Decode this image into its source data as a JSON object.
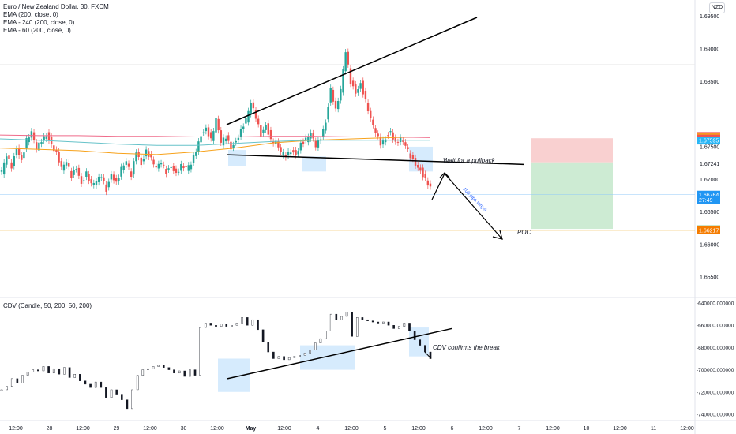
{
  "symbol_legend": {
    "symbol": "Euro / New Zealand Dollar, 30, FXCM",
    "indicators": [
      "EMA (200, close, 0)",
      "EMA - 240 (200, close, 0)",
      "EMA - 60 (200, close, 0)"
    ]
  },
  "cdv_legend": "CDV (Candle, 50, 200, 50, 200)",
  "currency_button": "NZD",
  "colors": {
    "up": "#26a69a",
    "down": "#ef5350",
    "ema200": "#f7a21b",
    "ema240": "#ef6b8a",
    "ema60": "#66c2c9",
    "poc": "#f0b43c",
    "zone": "#bbdefb",
    "stop": "#f9d0d0",
    "target": "#cdebd3",
    "text_label": "#2962ff"
  },
  "annotations": {
    "pullback": "Wait for a pullback",
    "poc": "POC",
    "target_move": "100 pips target",
    "cdv_break": "CDV confirms the break"
  },
  "chart_data": [
    {
      "type": "candlestick",
      "title": "Euro / New Zealand Dollar, 30, FXCM",
      "ylim": [
        1.652,
        1.6975
      ],
      "y_ticks": [
        "1.69500",
        "1.69000",
        "1.68500",
        "1.67500",
        "1.67241",
        "1.67000",
        "1.66500",
        "1.66000",
        "1.65500"
      ],
      "x_ticks": [
        "12:00",
        "28",
        "12:00",
        "29",
        "12:00",
        "30",
        "12:00",
        "May",
        "12:00",
        "4",
        "12:00",
        "5",
        "12:00",
        "6",
        "12:00",
        "7",
        "12:00",
        "10",
        "12:00",
        "11",
        "12:00"
      ],
      "price_path": [
        1.671,
        1.6735,
        1.672,
        1.675,
        1.673,
        1.676,
        1.677,
        1.6745,
        1.676,
        1.677,
        1.6755,
        1.674,
        1.6715,
        1.6725,
        1.6705,
        1.672,
        1.6695,
        1.671,
        1.669,
        1.6695,
        1.6705,
        1.6685,
        1.671,
        1.6695,
        1.6715,
        1.6725,
        1.6705,
        1.6745,
        1.6725,
        1.6745,
        1.673,
        1.6715,
        1.6725,
        1.6712,
        1.6722,
        1.671,
        1.672,
        1.6715,
        1.6722,
        1.6745,
        1.677,
        1.678,
        1.676,
        1.679,
        1.6755,
        1.6765,
        1.675,
        1.676,
        1.6775,
        1.679,
        1.6815,
        1.6795,
        1.677,
        1.6785,
        1.676,
        1.6755,
        1.674,
        1.6735,
        1.6745,
        1.674,
        1.6755,
        1.676,
        1.6768,
        1.675,
        1.6765,
        1.679,
        1.684,
        1.6805,
        1.6835,
        1.6895,
        1.685,
        1.6835,
        1.6848,
        1.682,
        1.679,
        1.677,
        1.6755,
        1.6765,
        1.6775,
        1.6755,
        1.676,
        1.675,
        1.6735,
        1.6725,
        1.6715,
        1.67,
        1.6685
      ],
      "series": [
        {
          "name": "EMA (200, close, 0)",
          "values": [
            1.6748,
            1.6746,
            1.6744,
            1.674,
            1.6738,
            1.6742,
            1.6748,
            1.6756,
            1.676,
            1.6762,
            1.6764,
            1.6765
          ]
        },
        {
          "name": "EMA - 240 (200, close, 0)",
          "values": [
            1.6768,
            1.6767,
            1.6767,
            1.6766,
            1.6766,
            1.6765,
            1.6765,
            1.6766,
            1.6766,
            1.6765,
            1.6765,
            1.6764
          ]
        },
        {
          "name": "EMA - 60 (200, close, 0)",
          "values": [
            1.6762,
            1.676,
            1.6757,
            1.6754,
            1.6752,
            1.6752,
            1.6755,
            1.6758,
            1.676,
            1.676,
            1.676,
            1.676
          ]
        }
      ],
      "price_labels": [
        {
          "text": "1.67664",
          "value": 1.67664,
          "color": "#ef5350"
        },
        {
          "text": "1.67643",
          "value": 1.67643,
          "color": "#f7a21b"
        },
        {
          "text": "1.67624",
          "value": 1.67624,
          "color": "#ef5350"
        },
        {
          "text": "1.67595",
          "value": 1.67595,
          "color": "#29b6f6"
        },
        {
          "text": "1.66764",
          "value": 1.66764,
          "color": "#2196f3"
        },
        {
          "text": "27:49",
          "value": 1.6668,
          "color": "#2196f3"
        },
        {
          "text": "1.66232",
          "value": 1.66232,
          "color": "#43a047"
        },
        {
          "text": "1.66217",
          "value": 1.66217,
          "color": "#f57c00"
        }
      ],
      "levels": {
        "neckline": 1.67241,
        "poc": 1.6622,
        "stop_top": 1.6763,
        "entry": 1.6726,
        "target": 1.6624
      }
    },
    {
      "type": "line",
      "title": "CDV (Candle, 50, 200, 50, 200)",
      "ylim": [
        -745000,
        -635000
      ],
      "y_ticks": [
        "-640000.000000",
        "-660000.000000",
        "-680000.000000",
        "-700000.000000",
        "-720000.000000",
        "-740000.000000"
      ],
      "values": [
        -718000,
        -715000,
        -708000,
        -712000,
        -705000,
        -702000,
        -700000,
        -701000,
        -697000,
        -703000,
        -699000,
        -704000,
        -698000,
        -707000,
        -704000,
        -710000,
        -713000,
        -716000,
        -711000,
        -716000,
        -725000,
        -718000,
        -722000,
        -727000,
        -735000,
        -718000,
        -705000,
        -700000,
        -699000,
        -697000,
        -696000,
        -698000,
        -700000,
        -703000,
        -701000,
        -706000,
        -700000,
        -705000,
        -662000,
        -658000,
        -660000,
        -661000,
        -659000,
        -661000,
        -660000,
        -658000,
        -653000,
        -660000,
        -655000,
        -664000,
        -675000,
        -684000,
        -690000,
        -688000,
        -691000,
        -689000,
        -688000,
        -687000,
        -685000,
        -682000,
        -676000,
        -672000,
        -665000,
        -650000,
        -655000,
        -652000,
        -648000,
        -670000,
        -653000,
        -655000,
        -656000,
        -657000,
        -658000,
        -657000,
        -660000,
        -663000,
        -661000,
        -658000,
        -665000,
        -673000,
        -678000,
        -684000,
        -690000
      ]
    }
  ]
}
